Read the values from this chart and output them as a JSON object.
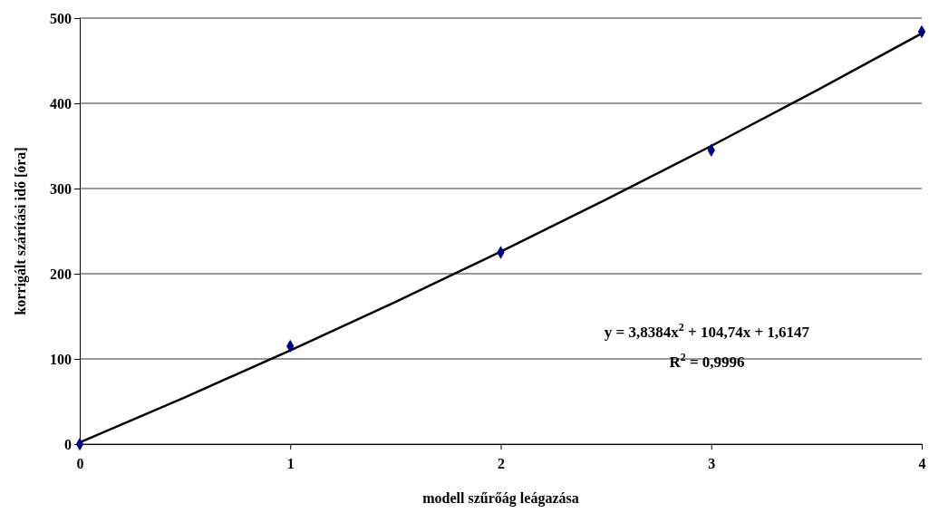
{
  "chart_data": {
    "type": "scatter",
    "xlabel": "modell szűrőág leágazása",
    "ylabel": "korrigált szárítási idő [óra]",
    "xlim": [
      0,
      4
    ],
    "xticks": [
      0,
      1,
      2,
      3,
      4
    ],
    "ylim": [
      0,
      500
    ],
    "yticks": [
      0,
      100,
      200,
      300,
      400,
      500
    ],
    "grid": "y",
    "marker": "diamond",
    "series": [
      {
        "color": "#000080",
        "x": [
          0,
          1,
          2,
          3,
          4
        ],
        "values": [
          0,
          115,
          225,
          345,
          484
        ]
      },
      {
        "type": "line",
        "color": "#000000",
        "marker": "none",
        "x": [
          0,
          0.5,
          1,
          1.5,
          2,
          2.5,
          3,
          3.5,
          4
        ],
        "values": [
          2,
          55,
          110,
          167,
          226,
          287,
          350,
          415,
          482
        ]
      }
    ],
    "annotations": [
      "y = 3,8384x$^{2}$ + 104,74x + 1,6147",
      "R$^{2}$ = 0,9996"
    ]
  }
}
